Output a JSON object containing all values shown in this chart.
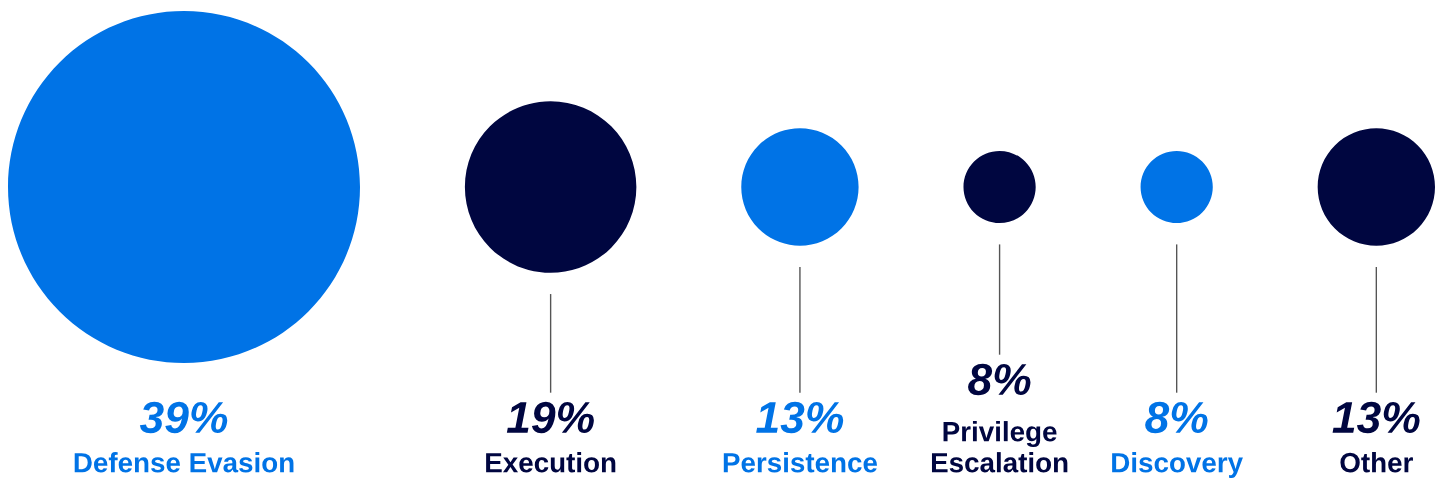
{
  "chart_data": {
    "type": "other",
    "categories": [
      "Defense Evasion",
      "Execution",
      "Persistence",
      "Privilege\nEscalation",
      "Discovery",
      "Other"
    ],
    "values": [
      39,
      19,
      13,
      8,
      8,
      13
    ],
    "value_labels": [
      "39%",
      "19%",
      "13%",
      "8%",
      "8%",
      "13%"
    ],
    "colors": [
      "#0073e6",
      "#000640",
      "#0073e6",
      "#000640",
      "#0073e6",
      "#000640"
    ],
    "data_labels": true
  }
}
